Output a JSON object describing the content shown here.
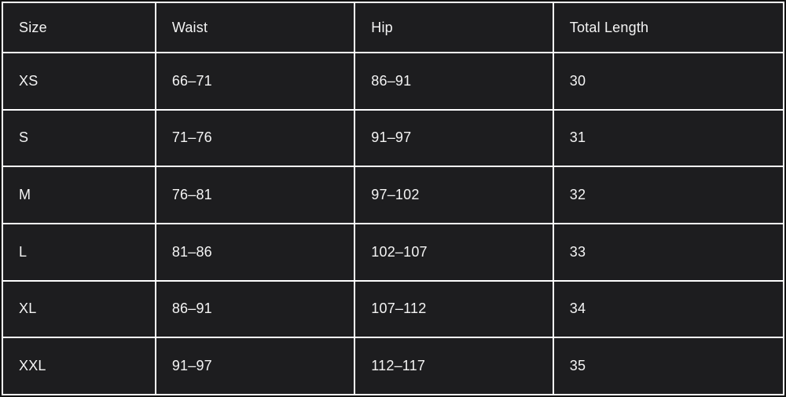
{
  "chart_data": {
    "type": "table",
    "columns": [
      "Size",
      "Waist",
      "Hip",
      "Total Length"
    ],
    "rows": [
      [
        "XS",
        "66–71",
        "86–91",
        "30"
      ],
      [
        "S",
        "71–76",
        "91–97",
        "31"
      ],
      [
        "M",
        "76–81",
        "97–102",
        "32"
      ],
      [
        "L",
        "81–86",
        "102–107",
        "33"
      ],
      [
        "XL",
        "86–91",
        "107–112",
        "34"
      ],
      [
        "XXL",
        "91–97",
        "112–117",
        "35"
      ]
    ]
  },
  "colors": {
    "cell_background": "#1d1d1f",
    "grid_line": "#ffffff",
    "outer_border": "#131313",
    "text": "#f4f4f4"
  }
}
